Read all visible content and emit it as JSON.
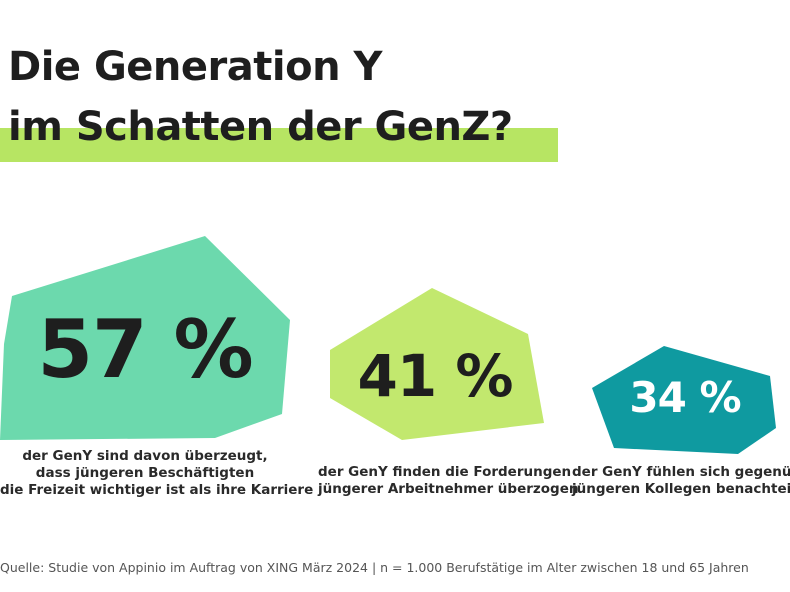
{
  "title": {
    "line1": "Die Generation Y",
    "line2": "im Schatten der GenZ?"
  },
  "colors": {
    "highlight": "#b7e563",
    "stat1": "#6cd9ad",
    "stat2": "#c2e86e",
    "stat3": "#0f9aa0",
    "text": "#1e1e1e"
  },
  "chart_data": {
    "type": "table",
    "stats": [
      {
        "value": 57,
        "label": "57 %",
        "caption": [
          "der GenY sind davon überzeugt,",
          "dass jüngeren Beschäftigten",
          "die Freizeit wichtiger ist als ihre Karriere"
        ]
      },
      {
        "value": 41,
        "label": "41 %",
        "caption": [
          "der GenY finden die Forderungen",
          "jüngerer Arbeitnehmer überzogen"
        ]
      },
      {
        "value": 34,
        "label": "34 %",
        "caption": [
          "der GenY fühlen sich gegenüber",
          "jüngeren Kollegen benachteiligt"
        ]
      }
    ]
  },
  "source": "Quelle: Studie von Appinio im Auftrag von XING März 2024 | n = 1.000 Berufstätige im Alter zwischen 18 und 65 Jahren"
}
